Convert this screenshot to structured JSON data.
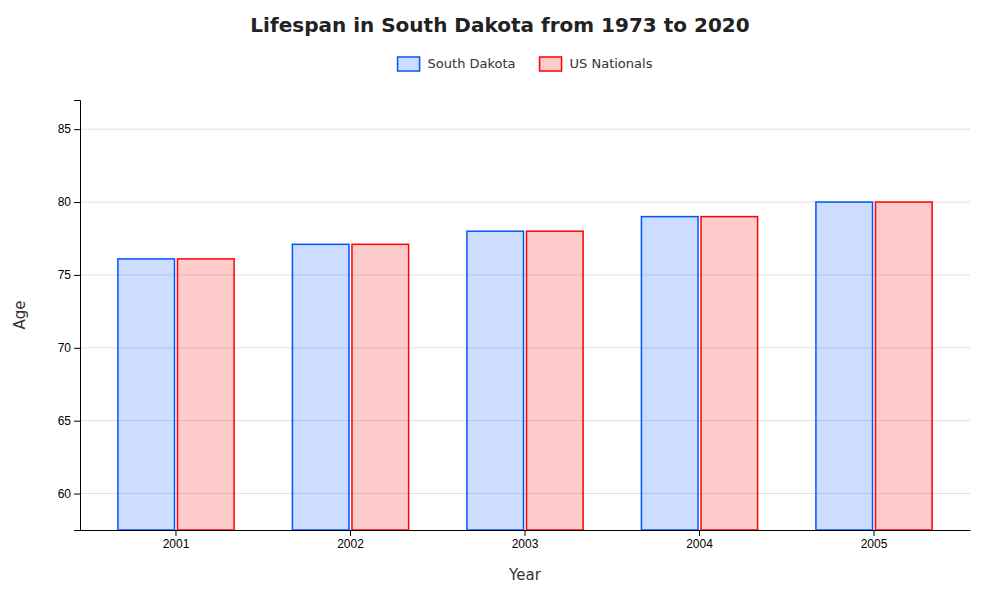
{
  "chart_data": {
    "type": "bar",
    "title": "Lifespan in South Dakota from 1973 to 2020",
    "xlabel": "Year",
    "ylabel": "Age",
    "categories": [
      "2001",
      "2002",
      "2003",
      "2004",
      "2005"
    ],
    "series": [
      {
        "name": "South Dakota",
        "color": "#0055ff",
        "values": [
          76.1,
          77.1,
          78.0,
          79.0,
          80.0
        ]
      },
      {
        "name": "US Nationals",
        "color": "#ff0000",
        "values": [
          76.1,
          77.1,
          78.0,
          79.0,
          80.0
        ]
      }
    ],
    "ylim": [
      57.5,
      87
    ],
    "yticks": [
      60,
      65,
      70,
      75,
      80,
      85
    ],
    "grid": true,
    "legend": "top"
  }
}
